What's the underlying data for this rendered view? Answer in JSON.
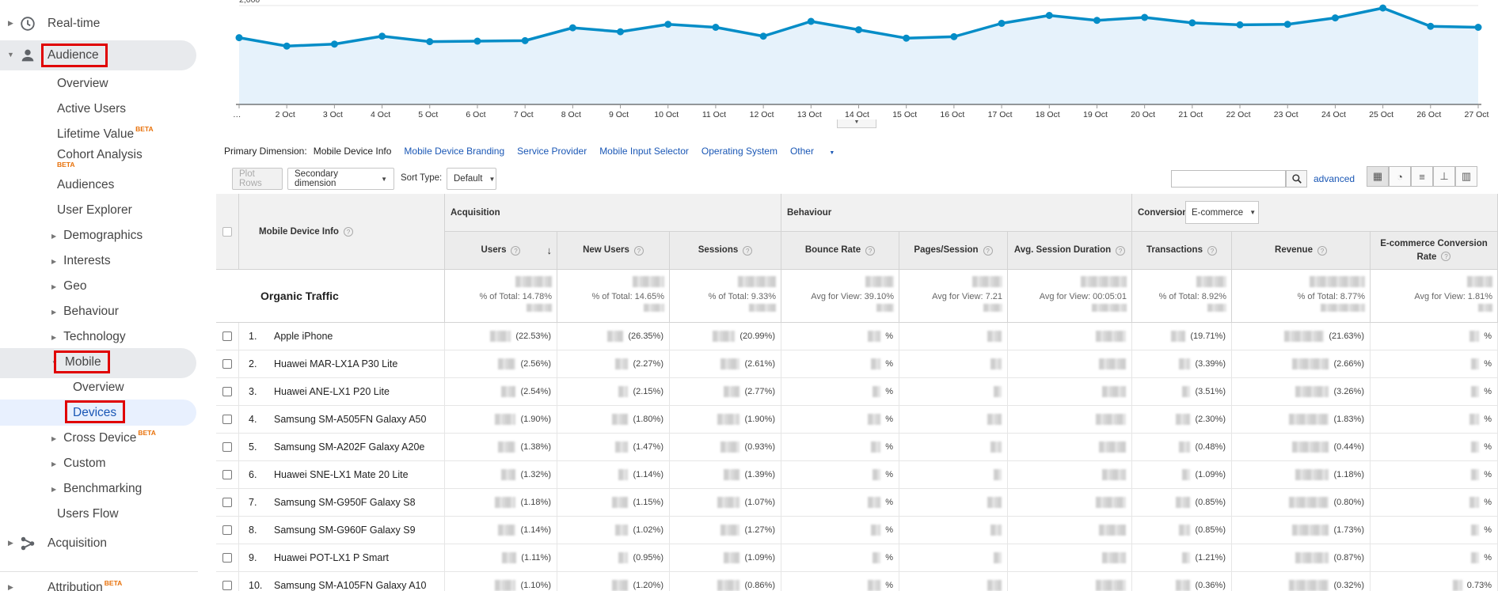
{
  "sidebar": {
    "items": [
      {
        "label": "Real-time"
      },
      {
        "label": "Audience"
      },
      {
        "label": "Overview"
      },
      {
        "label": "Active Users"
      },
      {
        "label": "Lifetime Value",
        "badge": "BETA"
      },
      {
        "label": "Cohort Analysis",
        "badge": "BETA"
      },
      {
        "label": "Audiences"
      },
      {
        "label": "User Explorer"
      },
      {
        "label": "Demographics"
      },
      {
        "label": "Interests"
      },
      {
        "label": "Geo"
      },
      {
        "label": "Behaviour"
      },
      {
        "label": "Technology"
      },
      {
        "label": "Mobile"
      },
      {
        "label": "Overview"
      },
      {
        "label": "Devices"
      },
      {
        "label": "Cross Device",
        "badge": "BETA"
      },
      {
        "label": "Custom"
      },
      {
        "label": "Benchmarking"
      },
      {
        "label": "Users Flow"
      },
      {
        "label": "Acquisition"
      },
      {
        "label": "Attribution",
        "badge": "BETA"
      }
    ]
  },
  "chart_data": {
    "type": "area",
    "x": [
      "…",
      "2 Oct",
      "3 Oct",
      "4 Oct",
      "5 Oct",
      "6 Oct",
      "7 Oct",
      "8 Oct",
      "9 Oct",
      "10 Oct",
      "11 Oct",
      "12 Oct",
      "13 Oct",
      "14 Oct",
      "15 Oct",
      "16 Oct",
      "17 Oct",
      "18 Oct",
      "19 Oct",
      "20 Oct",
      "21 Oct",
      "22 Oct",
      "23 Oct",
      "24 Oct",
      "25 Oct",
      "26 Oct",
      "27 Oct"
    ],
    "values": [
      1350,
      1180,
      1220,
      1380,
      1270,
      1280,
      1290,
      1550,
      1470,
      1620,
      1560,
      1380,
      1680,
      1510,
      1340,
      1370,
      1640,
      1800,
      1700,
      1760,
      1650,
      1610,
      1620,
      1750,
      1950,
      1580,
      1560
    ],
    "ylim": [
      0,
      2000
    ],
    "yticks": [
      "2,000",
      "1,000"
    ],
    "color": "#058dc7",
    "fill": "#e6f2fb"
  },
  "primary_dimension": {
    "label": "Primary Dimension:",
    "active": "Mobile Device Info",
    "options": [
      "Mobile Device Branding",
      "Service Provider",
      "Mobile Input Selector",
      "Operating System",
      "Other"
    ]
  },
  "toolbar": {
    "plot_rows": "Plot Rows",
    "secondary_dimension": "Secondary dimension",
    "sort_type_label": "Sort Type:",
    "sort_type_value": "Default",
    "advanced": "advanced"
  },
  "table": {
    "dimension_header": "Mobile Device Info",
    "groups": {
      "acquisition": "Acquisition",
      "behaviour": "Behaviour",
      "conversions": "Conversions",
      "conversions_select": "E-commerce"
    },
    "columns": [
      "Users",
      "New Users",
      "Sessions",
      "Bounce Rate",
      "Pages/Session",
      "Avg. Session Duration",
      "Transactions",
      "Revenue",
      "E-commerce Conversion Rate"
    ],
    "totals_label": "Organic Traffic",
    "totals": [
      "% of Total: 14.78%",
      "% of Total: 14.65%",
      "% of Total: 9.33%",
      "Avg for View: 39.10%",
      "Avg for View: 7.21",
      "Avg for View: 00:05:01",
      "% of Total: 8.92%",
      "% of Total: 8.77%",
      "Avg for View: 1.81%"
    ],
    "rows": [
      {
        "num": "1.",
        "device": "Apple iPhone",
        "users": "(22.53%)",
        "new_users": "(26.35%)",
        "sessions": "(20.99%)",
        "bounce": "%",
        "transactions": "(19.71%)",
        "revenue": "(21.63%)",
        "conv": "%"
      },
      {
        "num": "2.",
        "device": "Huawei MAR-LX1A P30 Lite",
        "users": "(2.56%)",
        "new_users": "(2.27%)",
        "sessions": "(2.61%)",
        "bounce": "%",
        "transactions": "(3.39%)",
        "revenue": "(2.66%)",
        "conv": "%"
      },
      {
        "num": "3.",
        "device": "Huawei ANE-LX1 P20 Lite",
        "users": "(2.54%)",
        "new_users": "(2.15%)",
        "sessions": "(2.77%)",
        "bounce": "%",
        "transactions": "(3.51%)",
        "revenue": "(3.26%)",
        "conv": "%"
      },
      {
        "num": "4.",
        "device": "Samsung SM-A505FN Galaxy A50",
        "users": "(1.90%)",
        "new_users": "(1.80%)",
        "sessions": "(1.90%)",
        "bounce": "%",
        "transactions": "(2.30%)",
        "revenue": "(1.83%)",
        "conv": "%"
      },
      {
        "num": "5.",
        "device": "Samsung SM-A202F Galaxy A20e",
        "users": "(1.38%)",
        "new_users": "(1.47%)",
        "sessions": "(0.93%)",
        "bounce": "%",
        "transactions": "(0.48%)",
        "revenue": "(0.44%)",
        "conv": "%"
      },
      {
        "num": "6.",
        "device": "Huawei SNE-LX1 Mate 20 Lite",
        "users": "(1.32%)",
        "new_users": "(1.14%)",
        "sessions": "(1.39%)",
        "bounce": "%",
        "transactions": "(1.09%)",
        "revenue": "(1.18%)",
        "conv": "%"
      },
      {
        "num": "7.",
        "device": "Samsung SM-G950F Galaxy S8",
        "users": "(1.18%)",
        "new_users": "(1.15%)",
        "sessions": "(1.07%)",
        "bounce": "%",
        "transactions": "(0.85%)",
        "revenue": "(0.80%)",
        "conv": "%"
      },
      {
        "num": "8.",
        "device": "Samsung SM-G960F Galaxy S9",
        "users": "(1.14%)",
        "new_users": "(1.02%)",
        "sessions": "(1.27%)",
        "bounce": "%",
        "transactions": "(0.85%)",
        "revenue": "(1.73%)",
        "conv": "%"
      },
      {
        "num": "9.",
        "device": "Huawei POT-LX1 P Smart",
        "users": "(1.11%)",
        "new_users": "(0.95%)",
        "sessions": "(1.09%)",
        "bounce": "%",
        "transactions": "(1.21%)",
        "revenue": "(0.87%)",
        "conv": "%"
      },
      {
        "num": "10.",
        "device": "Samsung SM-A105FN Galaxy A10",
        "users": "(1.10%)",
        "new_users": "(1.20%)",
        "sessions": "(0.86%)",
        "bounce": "%",
        "transactions": "(0.36%)",
        "revenue": "(0.32%)",
        "conv": "0.73%"
      }
    ]
  },
  "colors": {
    "highlight_box": "#e00000",
    "link": "#1a57b5",
    "series": "#058dc7"
  }
}
